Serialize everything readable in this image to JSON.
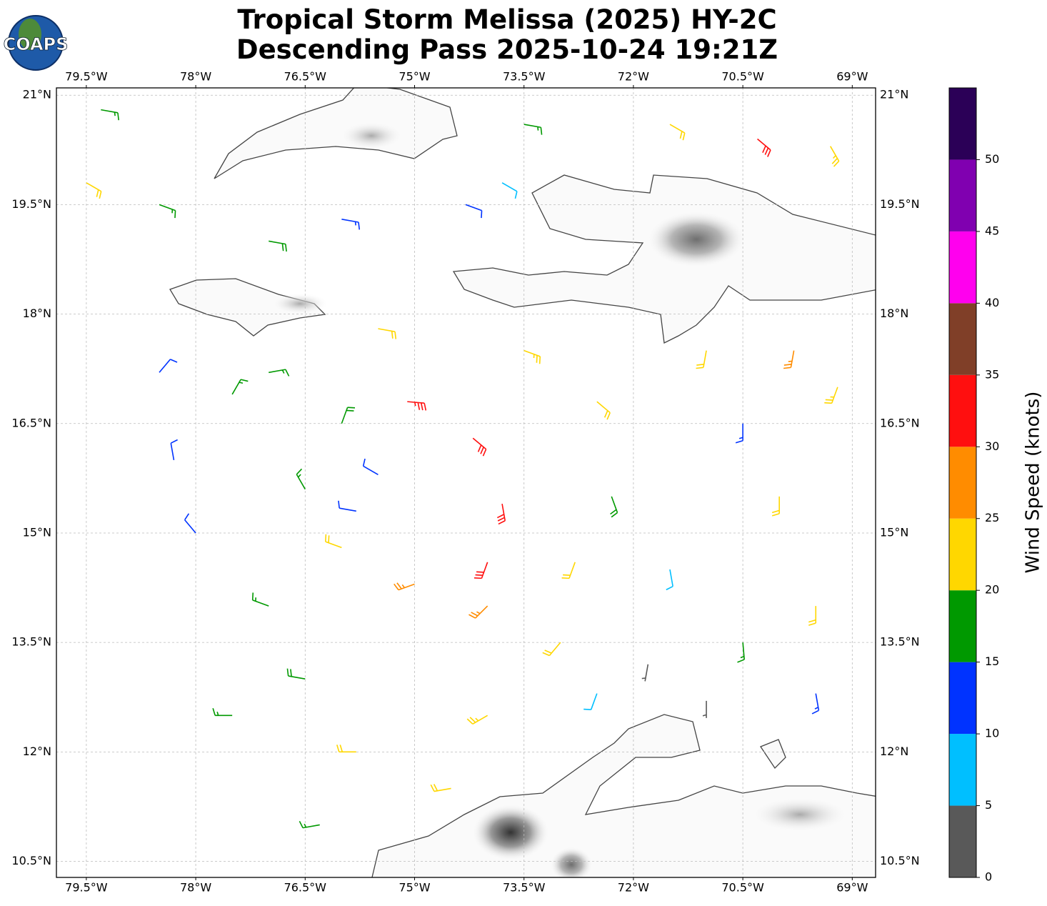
{
  "title_lines": [
    "Tropical Storm Melissa (2025) HY-2C",
    "Descending Pass 2025-10-24 19:21Z"
  ],
  "logo": "COAPS",
  "map": {
    "xlim": [
      -79.91,
      -68.68
    ],
    "ylim": [
      10.28,
      21.1
    ],
    "xticks": [
      {
        "value": -79.5,
        "label": "79.5°W"
      },
      {
        "value": -78,
        "label": "78°W"
      },
      {
        "value": -76.5,
        "label": "76.5°W"
      },
      {
        "value": -75,
        "label": "75°W"
      },
      {
        "value": -73.5,
        "label": "73.5°W"
      },
      {
        "value": -72,
        "label": "72°W"
      },
      {
        "value": -70.5,
        "label": "70.5°W"
      },
      {
        "value": -69,
        "label": "69°W"
      }
    ],
    "yticks": [
      {
        "value": 21,
        "label": "21°N"
      },
      {
        "value": 19.5,
        "label": "19.5°N"
      },
      {
        "value": 18,
        "label": "18°N"
      },
      {
        "value": 16.5,
        "label": "16.5°N"
      },
      {
        "value": 15,
        "label": "15°N"
      },
      {
        "value": 13.5,
        "label": "13.5°N"
      },
      {
        "value": 12,
        "label": "12°N"
      },
      {
        "value": 10.5,
        "label": "10.5°N"
      }
    ],
    "grid": true
  },
  "barbs": {
    "lon": [
      -75.1,
      -74.2,
      -73.8,
      -74.0,
      -75.0,
      -76.0,
      -76.5,
      -76.0,
      -75.5,
      -75.8,
      -77.5,
      -78.3,
      -78.0,
      -77.0,
      -76.5,
      -75.8,
      -74.5,
      -74.0,
      -73.0,
      -72.5,
      -71.8,
      -71.0,
      -71.5,
      -72.3,
      -72.5,
      -73.5,
      -75.5,
      -77.0,
      -78.5,
      -70.5,
      -70.0,
      -69.5,
      -69.5,
      -70.5,
      -69.8,
      -69.2,
      -71.0,
      -78.5,
      -79.5,
      -79.3,
      -77.0,
      -76.0,
      -74.3,
      -73.8,
      -73.5,
      -71.5,
      -70.3,
      -69.3,
      -77.5,
      -76.3,
      -74.0,
      -72.8
    ],
    "lat": [
      16.8,
      16.3,
      15.4,
      14.6,
      14.3,
      14.8,
      15.6,
      16.5,
      15.8,
      15.3,
      16.9,
      16.0,
      15.0,
      14.0,
      13.0,
      12.0,
      11.5,
      12.5,
      13.5,
      12.8,
      13.2,
      12.7,
      14.5,
      15.5,
      16.8,
      17.5,
      17.8,
      17.2,
      17.2,
      16.5,
      15.5,
      14.0,
      12.8,
      13.5,
      17.5,
      17.0,
      17.5,
      19.5,
      19.8,
      20.8,
      19.0,
      19.3,
      19.5,
      19.8,
      20.6,
      20.6,
      20.4,
      20.3,
      12.5,
      11.0,
      14.0,
      14.6
    ],
    "speed": [
      33,
      32,
      31,
      31,
      27,
      22,
      16,
      18,
      12,
      12,
      17,
      10,
      12,
      16,
      18,
      22,
      22,
      24,
      22,
      8,
      3,
      3,
      8,
      18,
      22,
      23,
      22,
      17,
      10,
      14,
      20,
      20,
      14,
      16,
      27,
      23,
      22,
      17,
      22,
      17,
      18,
      13,
      12,
      8,
      16,
      22,
      32,
      23,
      17,
      17,
      27,
      20
    ],
    "direction": [
      95,
      130,
      170,
      200,
      250,
      290,
      330,
      20,
      300,
      280,
      30,
      350,
      320,
      290,
      280,
      270,
      260,
      240,
      220,
      200,
      190,
      180,
      170,
      160,
      130,
      110,
      100,
      80,
      40,
      180,
      180,
      180,
      170,
      175,
      190,
      200,
      190,
      110,
      120,
      100,
      100,
      100,
      110,
      120,
      100,
      120,
      130,
      150,
      270,
      260,
      225,
      200
    ]
  },
  "colorbar": {
    "label": "Wind Speed (knots)",
    "levels": [
      0,
      5,
      10,
      15,
      20,
      25,
      30,
      35,
      40,
      45,
      50,
      55
    ],
    "colors": [
      "#595959",
      "#00bfff",
      "#0033ff",
      "#009900",
      "#ffd700",
      "#ff8c00",
      "#ff0f0f",
      "#803f28",
      "#ff00ee",
      "#8000b0",
      "#2b0057"
    ],
    "ticks": [
      0,
      5,
      10,
      15,
      20,
      25,
      30,
      35,
      40,
      45,
      50
    ]
  }
}
